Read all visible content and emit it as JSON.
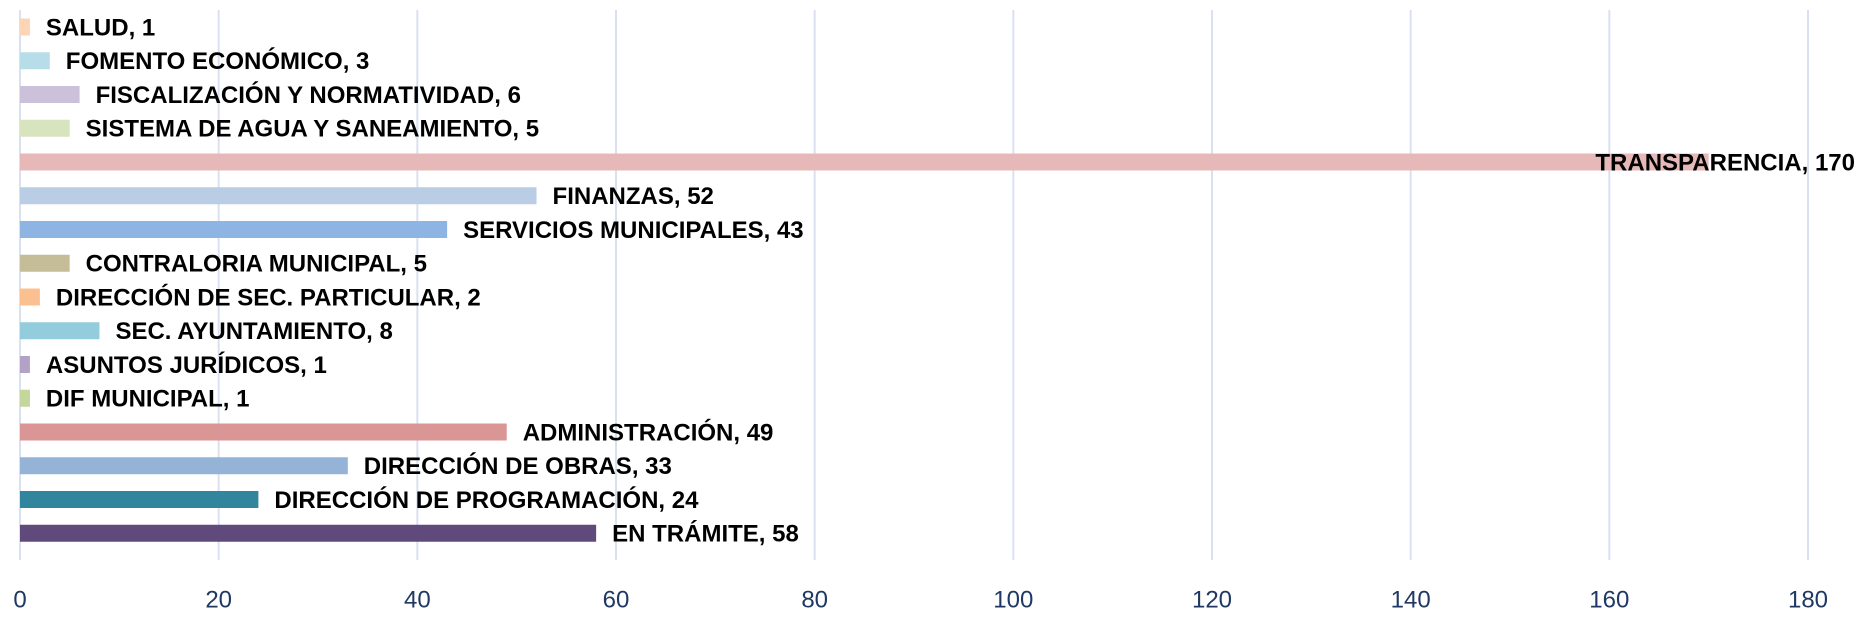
{
  "chart_data": {
    "type": "barh",
    "values": [
      1,
      3,
      6,
      5,
      170,
      52,
      43,
      5,
      2,
      8,
      1,
      1,
      49,
      33,
      24,
      58
    ],
    "value_labels": [
      "SALUD, 1",
      "FOMENTO ECONÓMICO, 3",
      "FISCALIZACIÓN Y NORMATIVIDAD, 6",
      "SISTEMA DE AGUA Y SANEAMIENTO, 5",
      "TRANSPARENCIA, 170",
      "FINANZAS, 52",
      "SERVICIOS MUNICIPALES, 43",
      "CONTRALORIA MUNICIPAL, 5",
      "DIRECCIÓN DE SEC. PARTICULAR, 2",
      "SEC. AYUNTAMIENTO, 8",
      "ASUNTOS JURÍDICOS, 1",
      "DIF MUNICIPAL, 1",
      "ADMINISTRACIÓN, 49",
      "DIRECCIÓN DE OBRAS, 33",
      "DIRECCIÓN DE PROGRAMACIÓN, 24",
      "EN TRÁMITE, 58"
    ],
    "colors": [
      "#fbd5b5",
      "#b7dee8",
      "#ccc1da",
      "#d7e4bd",
      "#e6b9b8",
      "#b9cde5",
      "#8eb4e3",
      "#c4bd97",
      "#fac090",
      "#93cddd",
      "#b3a2c7",
      "#c3d69b",
      "#d99694",
      "#95b3d7",
      "#31859c",
      "#604a7b"
    ],
    "xlim": [
      0,
      180
    ],
    "xticks": [
      0,
      20,
      40,
      60,
      80,
      100,
      120,
      140,
      160,
      180
    ],
    "grid": true
  }
}
